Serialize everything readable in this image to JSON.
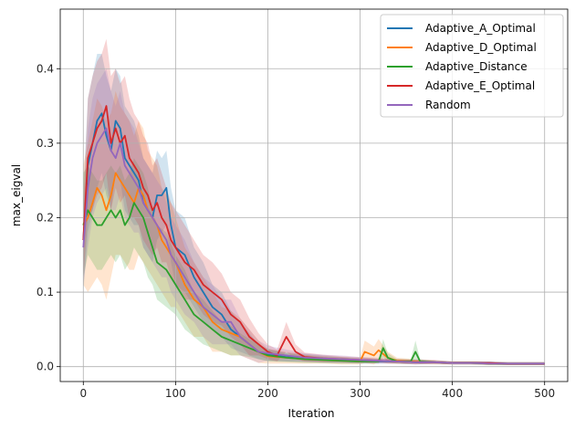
{
  "chart_data": {
    "type": "line",
    "title": "",
    "xlabel": "Iteration",
    "ylabel": "max_eigval",
    "xlim": [
      -25,
      525
    ],
    "ylim": [
      -0.02,
      0.48
    ],
    "xticks": [
      0,
      100,
      200,
      300,
      400,
      500
    ],
    "xtick_labels": [
      "0",
      "100",
      "200",
      "300",
      "400",
      "500"
    ],
    "yticks": [
      0.0,
      0.1,
      0.2,
      0.3,
      0.4
    ],
    "ytick_labels": [
      "0.0",
      "0.1",
      "0.2",
      "0.3",
      "0.4"
    ],
    "grid": true,
    "legend_position": "top-right",
    "series": [
      {
        "name": "Adaptive_A_Optimal",
        "color": "#1f77b4",
        "x": [
          0,
          5,
          10,
          15,
          20,
          25,
          30,
          35,
          40,
          45,
          50,
          55,
          60,
          65,
          70,
          75,
          80,
          85,
          90,
          95,
          100,
          110,
          120,
          130,
          140,
          150,
          160,
          170,
          180,
          190,
          200,
          220,
          240,
          260,
          280,
          300,
          320,
          340,
          360,
          380,
          400,
          420,
          440,
          460,
          480,
          500
        ],
        "y": [
          0.17,
          0.27,
          0.3,
          0.33,
          0.34,
          0.31,
          0.29,
          0.33,
          0.32,
          0.28,
          0.27,
          0.26,
          0.25,
          0.22,
          0.21,
          0.2,
          0.23,
          0.23,
          0.24,
          0.19,
          0.16,
          0.15,
          0.12,
          0.1,
          0.08,
          0.07,
          0.05,
          0.04,
          0.03,
          0.02,
          0.016,
          0.013,
          0.012,
          0.01,
          0.009,
          0.008,
          0.007,
          0.007,
          0.006,
          0.006,
          0.005,
          0.005,
          0.005,
          0.004,
          0.004,
          0.004
        ],
        "band": [
          0.07,
          0.09,
          0.09,
          0.09,
          0.08,
          0.08,
          0.08,
          0.07,
          0.07,
          0.07,
          0.07,
          0.07,
          0.06,
          0.06,
          0.06,
          0.06,
          0.06,
          0.05,
          0.05,
          0.05,
          0.05,
          0.05,
          0.04,
          0.04,
          0.03,
          0.03,
          0.025,
          0.02,
          0.015,
          0.01,
          0.008,
          0.006,
          0.005,
          0.005,
          0.004,
          0.004,
          0.003,
          0.003,
          0.003,
          0.002,
          0.002,
          0.002,
          0.002,
          0.002,
          0.002,
          0.002
        ]
      },
      {
        "name": "Adaptive_D_Optimal",
        "color": "#ff7f0e",
        "x": [
          0,
          5,
          10,
          15,
          20,
          25,
          30,
          35,
          40,
          45,
          50,
          55,
          60,
          65,
          70,
          75,
          80,
          85,
          90,
          95,
          100,
          110,
          120,
          130,
          140,
          150,
          160,
          170,
          180,
          190,
          200,
          220,
          240,
          260,
          280,
          300,
          305,
          315,
          320,
          330,
          340,
          360,
          380,
          400,
          420,
          440,
          460,
          480,
          500
        ],
        "y": [
          0.19,
          0.2,
          0.22,
          0.24,
          0.23,
          0.21,
          0.23,
          0.26,
          0.25,
          0.24,
          0.23,
          0.22,
          0.24,
          0.23,
          0.21,
          0.2,
          0.19,
          0.17,
          0.16,
          0.15,
          0.14,
          0.11,
          0.09,
          0.08,
          0.06,
          0.05,
          0.045,
          0.04,
          0.03,
          0.02,
          0.014,
          0.012,
          0.01,
          0.009,
          0.008,
          0.007,
          0.02,
          0.015,
          0.022,
          0.012,
          0.008,
          0.007,
          0.006,
          0.005,
          0.005,
          0.004,
          0.004,
          0.004,
          0.004
        ],
        "band": [
          0.08,
          0.1,
          0.11,
          0.12,
          0.12,
          0.12,
          0.11,
          0.11,
          0.1,
          0.1,
          0.1,
          0.09,
          0.09,
          0.09,
          0.08,
          0.08,
          0.08,
          0.07,
          0.07,
          0.07,
          0.06,
          0.05,
          0.05,
          0.04,
          0.04,
          0.03,
          0.03,
          0.025,
          0.02,
          0.015,
          0.01,
          0.008,
          0.006,
          0.005,
          0.005,
          0.004,
          0.015,
          0.012,
          0.015,
          0.008,
          0.004,
          0.003,
          0.003,
          0.002,
          0.002,
          0.002,
          0.002,
          0.002,
          0.002
        ]
      },
      {
        "name": "Adaptive_Distance",
        "color": "#2ca02c",
        "x": [
          0,
          5,
          10,
          15,
          20,
          25,
          30,
          35,
          40,
          45,
          50,
          55,
          60,
          65,
          70,
          75,
          80,
          90,
          100,
          110,
          120,
          130,
          140,
          150,
          160,
          170,
          180,
          190,
          200,
          220,
          240,
          260,
          280,
          300,
          320,
          325,
          330,
          340,
          355,
          360,
          365,
          380,
          400,
          420,
          440,
          460,
          480,
          500
        ],
        "y": [
          0.19,
          0.21,
          0.2,
          0.19,
          0.19,
          0.2,
          0.21,
          0.2,
          0.21,
          0.19,
          0.2,
          0.22,
          0.21,
          0.2,
          0.18,
          0.16,
          0.14,
          0.13,
          0.11,
          0.09,
          0.07,
          0.06,
          0.05,
          0.04,
          0.035,
          0.03,
          0.025,
          0.02,
          0.015,
          0.012,
          0.01,
          0.009,
          0.008,
          0.007,
          0.007,
          0.025,
          0.012,
          0.007,
          0.007,
          0.02,
          0.007,
          0.006,
          0.005,
          0.005,
          0.004,
          0.004,
          0.004,
          0.004
        ],
        "band": [
          0.07,
          0.06,
          0.06,
          0.06,
          0.06,
          0.06,
          0.06,
          0.06,
          0.06,
          0.06,
          0.06,
          0.06,
          0.06,
          0.06,
          0.06,
          0.05,
          0.05,
          0.05,
          0.04,
          0.04,
          0.03,
          0.03,
          0.025,
          0.02,
          0.02,
          0.015,
          0.012,
          0.01,
          0.008,
          0.006,
          0.005,
          0.004,
          0.004,
          0.003,
          0.003,
          0.012,
          0.006,
          0.003,
          0.003,
          0.015,
          0.003,
          0.002,
          0.002,
          0.002,
          0.002,
          0.002,
          0.002,
          0.002
        ]
      },
      {
        "name": "Adaptive_E_Optimal",
        "color": "#d62728",
        "x": [
          0,
          5,
          10,
          15,
          20,
          25,
          30,
          35,
          40,
          45,
          50,
          55,
          60,
          65,
          70,
          75,
          80,
          85,
          90,
          95,
          100,
          110,
          120,
          130,
          140,
          150,
          160,
          170,
          180,
          190,
          200,
          210,
          220,
          230,
          240,
          260,
          280,
          300,
          320,
          340,
          360,
          380,
          400,
          420,
          440,
          460,
          480,
          500
        ],
        "y": [
          0.17,
          0.28,
          0.3,
          0.32,
          0.33,
          0.35,
          0.3,
          0.32,
          0.3,
          0.31,
          0.28,
          0.27,
          0.26,
          0.24,
          0.23,
          0.21,
          0.22,
          0.2,
          0.19,
          0.17,
          0.16,
          0.14,
          0.13,
          0.11,
          0.1,
          0.09,
          0.07,
          0.06,
          0.04,
          0.03,
          0.02,
          0.015,
          0.04,
          0.02,
          0.013,
          0.011,
          0.01,
          0.009,
          0.008,
          0.007,
          0.006,
          0.006,
          0.005,
          0.005,
          0.005,
          0.004,
          0.004,
          0.004
        ],
        "band": [
          0.05,
          0.08,
          0.09,
          0.09,
          0.09,
          0.09,
          0.09,
          0.08,
          0.08,
          0.08,
          0.08,
          0.07,
          0.07,
          0.07,
          0.07,
          0.06,
          0.06,
          0.06,
          0.05,
          0.05,
          0.05,
          0.05,
          0.04,
          0.04,
          0.04,
          0.035,
          0.03,
          0.03,
          0.025,
          0.015,
          0.01,
          0.008,
          0.02,
          0.01,
          0.006,
          0.005,
          0.004,
          0.004,
          0.003,
          0.003,
          0.003,
          0.002,
          0.002,
          0.002,
          0.002,
          0.002,
          0.002,
          0.002
        ]
      },
      {
        "name": "Random",
        "color": "#9467bd",
        "x": [
          0,
          5,
          10,
          15,
          20,
          25,
          30,
          35,
          40,
          45,
          50,
          55,
          60,
          65,
          70,
          75,
          80,
          85,
          90,
          95,
          100,
          110,
          120,
          130,
          140,
          150,
          160,
          170,
          180,
          190,
          200,
          220,
          240,
          260,
          280,
          300,
          320,
          340,
          360,
          380,
          400,
          420,
          440,
          460,
          480,
          500
        ],
        "y": [
          0.16,
          0.24,
          0.28,
          0.3,
          0.31,
          0.32,
          0.29,
          0.28,
          0.3,
          0.27,
          0.26,
          0.25,
          0.24,
          0.22,
          0.21,
          0.2,
          0.19,
          0.18,
          0.17,
          0.15,
          0.14,
          0.12,
          0.1,
          0.08,
          0.07,
          0.06,
          0.06,
          0.04,
          0.03,
          0.02,
          0.018,
          0.015,
          0.012,
          0.011,
          0.01,
          0.009,
          0.008,
          0.007,
          0.006,
          0.006,
          0.005,
          0.005,
          0.004,
          0.004,
          0.004,
          0.004
        ],
        "band": [
          0.05,
          0.08,
          0.08,
          0.08,
          0.08,
          0.08,
          0.08,
          0.07,
          0.07,
          0.07,
          0.07,
          0.07,
          0.06,
          0.06,
          0.06,
          0.06,
          0.06,
          0.06,
          0.05,
          0.05,
          0.05,
          0.05,
          0.04,
          0.04,
          0.04,
          0.03,
          0.03,
          0.025,
          0.02,
          0.015,
          0.01,
          0.008,
          0.006,
          0.005,
          0.005,
          0.004,
          0.004,
          0.003,
          0.003,
          0.003,
          0.002,
          0.002,
          0.002,
          0.002,
          0.002,
          0.002
        ]
      }
    ]
  }
}
